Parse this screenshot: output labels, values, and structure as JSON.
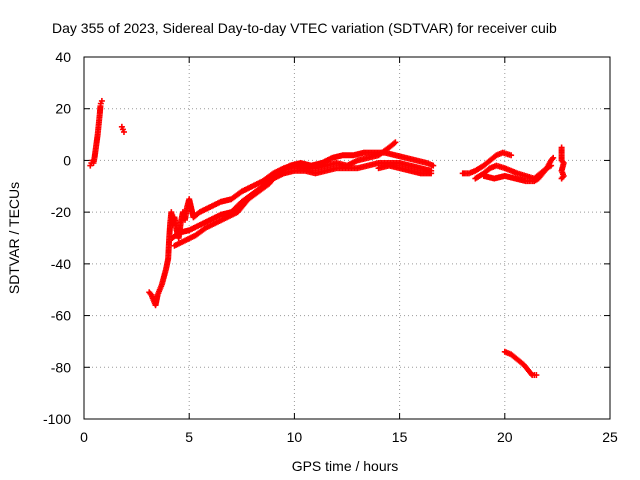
{
  "chart_data": {
    "type": "scatter",
    "title": "Day 355 of 2023, Sidereal Day-to-day VTEC variation (SDTVAR) for receiver cuib",
    "xlabel": "GPS time / hours",
    "ylabel": "SDTVAR / TECUs",
    "xlim": [
      0,
      25
    ],
    "ylim": [
      -100,
      40
    ],
    "xticks": [
      0,
      5,
      10,
      15,
      20,
      25
    ],
    "yticks": [
      -100,
      -80,
      -60,
      -40,
      -20,
      0,
      20,
      40
    ],
    "grid": true,
    "marker": "+",
    "color": "#ff0000",
    "series": [
      {
        "name": "SDTVAR",
        "segments": [
          [
            [
              0.3,
              -2
            ],
            [
              0.35,
              -1
            ],
            [
              0.4,
              0
            ],
            [
              0.45,
              -1
            ],
            [
              0.5,
              1
            ],
            [
              0.55,
              4
            ],
            [
              0.6,
              7
            ],
            [
              0.65,
              10
            ],
            [
              0.7,
              14
            ],
            [
              0.75,
              18
            ],
            [
              0.78,
              21
            ],
            [
              0.8,
              22
            ],
            [
              0.85,
              23
            ]
          ],
          [
            [
              1.8,
              13
            ],
            [
              1.85,
              12
            ],
            [
              1.9,
              11
            ]
          ],
          [
            [
              3.1,
              -51
            ],
            [
              3.2,
              -52
            ],
            [
              3.3,
              -54
            ],
            [
              3.4,
              -56
            ],
            [
              3.5,
              -52
            ],
            [
              3.6,
              -50
            ],
            [
              3.7,
              -48
            ],
            [
              3.8,
              -45
            ],
            [
              3.9,
              -42
            ],
            [
              4.0,
              -38
            ],
            [
              4.05,
              -30
            ],
            [
              4.1,
              -24
            ],
            [
              4.15,
              -20
            ],
            [
              4.2,
              -25
            ],
            [
              4.3,
              -22
            ],
            [
              4.4,
              -27
            ],
            [
              4.5,
              -30
            ],
            [
              4.6,
              -24
            ],
            [
              4.7,
              -20
            ],
            [
              4.8,
              -23
            ],
            [
              4.9,
              -18
            ],
            [
              5.0,
              -15
            ],
            [
              5.2,
              -22
            ],
            [
              5.5,
              -20
            ],
            [
              6.0,
              -18
            ],
            [
              6.5,
              -16
            ],
            [
              7.0,
              -15
            ],
            [
              7.5,
              -12
            ],
            [
              8.0,
              -10
            ],
            [
              8.5,
              -8
            ],
            [
              9.0,
              -5
            ],
            [
              9.5,
              -3
            ],
            [
              10.0,
              -2
            ],
            [
              10.5,
              -3
            ],
            [
              11.0,
              -3
            ],
            [
              11.5,
              -2
            ],
            [
              12.0,
              -1
            ],
            [
              12.5,
              -2
            ],
            [
              13.0,
              0
            ],
            [
              13.5,
              1
            ],
            [
              14.0,
              2
            ],
            [
              14.5,
              5
            ],
            [
              14.8,
              7
            ]
          ],
          [
            [
              4.2,
              -30
            ],
            [
              4.5,
              -28
            ],
            [
              5.0,
              -27
            ],
            [
              5.5,
              -25
            ],
            [
              6.0,
              -23
            ],
            [
              6.5,
              -21
            ],
            [
              7.0,
              -20
            ],
            [
              7.5,
              -16
            ],
            [
              8.0,
              -13
            ],
            [
              8.5,
              -10
            ],
            [
              9.0,
              -7
            ],
            [
              9.5,
              -5
            ],
            [
              10.0,
              -4
            ],
            [
              10.5,
              -4
            ],
            [
              11.0,
              -5
            ],
            [
              11.5,
              -4
            ],
            [
              12.0,
              -3
            ],
            [
              12.5,
              -3
            ],
            [
              13.0,
              -3
            ],
            [
              13.5,
              -2
            ],
            [
              14.0,
              -1
            ],
            [
              14.5,
              -1
            ],
            [
              15.0,
              -1
            ],
            [
              15.5,
              -2
            ],
            [
              16.0,
              -3
            ],
            [
              16.5,
              -4
            ]
          ],
          [
            [
              4.3,
              -33
            ],
            [
              4.8,
              -31
            ],
            [
              5.3,
              -29
            ],
            [
              5.8,
              -26
            ],
            [
              6.3,
              -24
            ],
            [
              6.8,
              -22
            ],
            [
              7.3,
              -20
            ],
            [
              7.8,
              -15
            ],
            [
              8.3,
              -12
            ],
            [
              8.8,
              -9
            ],
            [
              9.3,
              -4
            ],
            [
              9.8,
              -2
            ],
            [
              10.3,
              -1
            ],
            [
              10.8,
              -2
            ],
            [
              11.3,
              -1
            ],
            [
              11.8,
              1
            ],
            [
              12.3,
              2
            ],
            [
              12.8,
              2
            ],
            [
              13.3,
              3
            ],
            [
              13.8,
              3
            ],
            [
              14.3,
              3
            ],
            [
              14.8,
              2
            ],
            [
              15.3,
              1
            ],
            [
              15.8,
              0
            ],
            [
              16.3,
              -1
            ],
            [
              16.6,
              -2
            ]
          ],
          [
            [
              14.0,
              -3
            ],
            [
              14.5,
              -2
            ],
            [
              15.0,
              -3
            ],
            [
              15.5,
              -4
            ],
            [
              16.0,
              -5
            ],
            [
              16.5,
              -5
            ]
          ],
          [
            [
              18.0,
              -5
            ],
            [
              18.3,
              -5
            ],
            [
              18.6,
              -4
            ],
            [
              19.0,
              -2
            ],
            [
              19.3,
              0
            ],
            [
              19.6,
              2
            ],
            [
              19.9,
              3
            ],
            [
              20.3,
              2
            ]
          ],
          [
            [
              18.6,
              -7
            ],
            [
              19.0,
              -5
            ],
            [
              19.3,
              -3
            ],
            [
              19.6,
              -2
            ],
            [
              20.0,
              -3
            ],
            [
              20.3,
              -4
            ],
            [
              20.6,
              -5
            ],
            [
              21.0,
              -6
            ],
            [
              21.4,
              -7
            ],
            [
              21.7,
              -5
            ],
            [
              22.0,
              -3
            ],
            [
              22.2,
              0
            ],
            [
              22.3,
              1
            ]
          ],
          [
            [
              19.0,
              -6
            ],
            [
              19.5,
              -7
            ],
            [
              20.0,
              -6
            ],
            [
              20.5,
              -7
            ],
            [
              21.0,
              -8
            ],
            [
              21.4,
              -8
            ],
            [
              21.6,
              -7
            ],
            [
              21.8,
              -5
            ],
            [
              22.0,
              -3
            ],
            [
              22.2,
              -2
            ]
          ],
          [
            [
              20.0,
              -74
            ],
            [
              20.3,
              -75
            ],
            [
              20.6,
              -77
            ],
            [
              20.9,
              -79
            ],
            [
              21.1,
              -81
            ],
            [
              21.3,
              -83
            ],
            [
              21.5,
              -83
            ]
          ],
          [
            [
              22.7,
              5
            ],
            [
              22.7,
              0
            ],
            [
              22.8,
              -1
            ],
            [
              22.7,
              -4
            ],
            [
              22.8,
              -6
            ],
            [
              22.7,
              -7
            ]
          ]
        ]
      }
    ]
  }
}
